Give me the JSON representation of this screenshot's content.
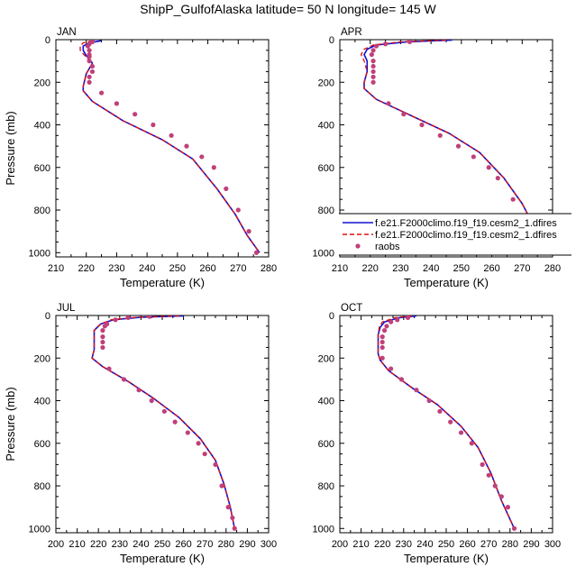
{
  "figure": {
    "title": "ShipP_GulfofAlaska  latitude= 50 N longitude= 145 W"
  },
  "legend": {
    "entries": [
      {
        "label": "f.e21.F2000climo.f19_f19.cesm2_1.dfires",
        "style": "solid",
        "color": "#1010d0"
      },
      {
        "label": "f.e21.F2000climo.f19_f19.cesm2_1.dfires",
        "style": "dashed",
        "color": "#e01010"
      },
      {
        "label": "raobs",
        "style": "marker",
        "color": "#c0407a"
      }
    ]
  },
  "chart_data": [
    {
      "type": "line",
      "panel": "JAN",
      "title": "JAN",
      "xlabel": "Temperature (K)",
      "ylabel": "Pressure (mb)",
      "xlim": [
        210,
        280
      ],
      "ylim": [
        1020,
        0
      ],
      "xticks": [
        210,
        220,
        230,
        240,
        250,
        260,
        270,
        280
      ],
      "yticks": [
        0,
        200,
        400,
        600,
        800,
        1000
      ],
      "series": [
        {
          "style": "solid",
          "color": "#1010d0",
          "x": [
            225,
            221,
            219,
            219,
            220,
            222,
            220,
            219,
            219,
            222,
            232,
            245,
            255,
            263,
            269,
            273,
            277
          ],
          "y": [
            5,
            15,
            30,
            50,
            75,
            110,
            160,
            220,
            240,
            290,
            380,
            470,
            560,
            700,
            820,
            920,
            1000
          ]
        },
        {
          "style": "dashed",
          "color": "#e01010",
          "x": [
            222,
            219,
            218,
            218,
            219.5,
            222,
            220,
            219,
            219,
            222,
            232,
            245,
            255,
            263,
            269,
            273,
            277
          ],
          "y": [
            5,
            15,
            30,
            50,
            75,
            110,
            160,
            220,
            240,
            290,
            380,
            470,
            560,
            700,
            820,
            920,
            1000
          ]
        },
        {
          "style": "marker",
          "color": "#c0407a",
          "x": [
            222,
            221,
            220.5,
            221,
            221,
            221,
            221,
            222,
            222,
            221,
            221,
            225,
            230,
            236,
            242,
            248,
            253,
            258,
            262,
            266,
            270,
            273.5,
            276
          ],
          "y": [
            10,
            20,
            30,
            50,
            70,
            80,
            100,
            125,
            150,
            175,
            200,
            250,
            300,
            350,
            400,
            450,
            500,
            550,
            600,
            700,
            800,
            900,
            1000
          ]
        }
      ]
    },
    {
      "type": "line",
      "panel": "APR",
      "title": "APR",
      "xlabel": "Temperature (K)",
      "ylabel": "",
      "xlim": [
        210,
        280
      ],
      "ylim": [
        1020,
        0
      ],
      "xticks": [
        210,
        220,
        230,
        240,
        250,
        260,
        270,
        280
      ],
      "yticks": [
        0,
        200,
        400,
        600,
        800,
        1000
      ],
      "series": [
        {
          "style": "solid",
          "color": "#1010d0",
          "x": [
            247,
            232,
            222,
            219,
            218,
            219,
            219,
            218,
            218,
            222,
            234,
            246,
            256,
            264,
            270,
            274,
            277
          ],
          "y": [
            2,
            10,
            25,
            45,
            70,
            100,
            150,
            200,
            230,
            280,
            360,
            440,
            530,
            650,
            770,
            880,
            1000
          ]
        },
        {
          "style": "dashed",
          "color": "#e01010",
          "x": [
            245,
            230,
            221,
            218,
            217,
            218,
            219,
            218,
            218,
            222,
            234,
            246,
            256,
            264,
            270,
            274,
            277
          ],
          "y": [
            2,
            10,
            25,
            45,
            70,
            100,
            150,
            200,
            230,
            280,
            360,
            440,
            530,
            650,
            770,
            880,
            1000
          ]
        },
        {
          "style": "marker",
          "color": "#c0407a",
          "x": [
            233,
            225,
            222,
            221,
            220.5,
            221,
            221,
            221,
            221,
            221,
            226,
            231,
            237,
            243,
            249,
            254,
            259,
            262,
            267,
            270,
            274,
            277
          ],
          "y": [
            10,
            20,
            30,
            50,
            70,
            100,
            125,
            150,
            175,
            200,
            300,
            350,
            400,
            450,
            500,
            550,
            600,
            650,
            750,
            850,
            950,
            1000
          ]
        }
      ]
    },
    {
      "type": "line",
      "panel": "JUL",
      "title": "JUL",
      "xlabel": "Temperature (K)",
      "ylabel": "Pressure (mb)",
      "xlim": [
        200,
        300
      ],
      "ylim": [
        1020,
        0
      ],
      "xticks": [
        200,
        210,
        220,
        230,
        240,
        250,
        260,
        270,
        280,
        290,
        300
      ],
      "yticks": [
        0,
        200,
        400,
        600,
        800,
        1000
      ],
      "series": [
        {
          "style": "solid",
          "color": "#1010d0",
          "x": [
            260,
            240,
            227,
            221,
            218,
            218,
            218,
            217,
            222,
            234,
            246,
            258,
            268,
            275,
            279,
            282,
            284
          ],
          "y": [
            2,
            8,
            20,
            40,
            70,
            110,
            160,
            200,
            240,
            310,
            390,
            480,
            580,
            680,
            790,
            900,
            1000
          ]
        },
        {
          "style": "dashed",
          "color": "#e01010",
          "x": [
            258,
            238,
            226,
            221,
            218,
            218,
            218,
            217,
            222,
            234,
            246,
            258,
            268,
            275,
            279,
            282,
            284
          ],
          "y": [
            2,
            8,
            20,
            40,
            70,
            110,
            160,
            200,
            240,
            310,
            390,
            480,
            580,
            680,
            790,
            900,
            1000
          ]
        },
        {
          "style": "marker",
          "color": "#c0407a",
          "x": [
            244,
            234,
            228,
            224,
            223,
            222,
            222,
            222,
            222,
            225,
            232,
            239,
            245,
            251,
            256,
            262,
            267,
            270,
            275,
            278,
            281,
            283,
            284
          ],
          "y": [
            5,
            10,
            20,
            40,
            50,
            70,
            100,
            125,
            150,
            250,
            300,
            350,
            400,
            450,
            500,
            550,
            600,
            650,
            700,
            800,
            900,
            950,
            1000
          ]
        }
      ]
    },
    {
      "type": "line",
      "panel": "OCT",
      "title": "OCT",
      "xlabel": "Temperature (K)",
      "ylabel": "",
      "xlim": [
        200,
        300
      ],
      "ylim": [
        1020,
        0
      ],
      "xticks": [
        200,
        210,
        220,
        230,
        240,
        250,
        260,
        270,
        280,
        290,
        300
      ],
      "yticks": [
        0,
        200,
        400,
        600,
        800,
        1000
      ],
      "series": [
        {
          "style": "solid",
          "color": "#1010d0",
          "x": [
            236,
            228,
            221,
            219,
            218,
            218,
            218,
            219,
            223,
            234,
            246,
            257,
            265,
            271,
            276,
            282
          ],
          "y": [
            2,
            10,
            30,
            55,
            90,
            130,
            180,
            210,
            260,
            340,
            420,
            520,
            620,
            740,
            870,
            1000
          ]
        },
        {
          "style": "dashed",
          "color": "#e01010",
          "x": [
            234,
            226,
            220,
            218.5,
            218,
            218,
            218,
            219,
            223,
            234,
            246,
            257,
            265,
            271,
            276,
            282
          ],
          "y": [
            2,
            10,
            30,
            55,
            90,
            130,
            180,
            210,
            260,
            340,
            420,
            520,
            620,
            740,
            870,
            1000
          ]
        },
        {
          "style": "marker",
          "color": "#c0407a",
          "x": [
            232,
            227,
            224,
            222,
            221,
            220,
            220,
            220,
            220,
            224,
            229,
            236,
            242,
            247,
            252,
            257,
            262,
            267,
            270,
            273,
            276,
            279,
            282
          ],
          "y": [
            10,
            20,
            30,
            50,
            70,
            100,
            125,
            150,
            200,
            250,
            300,
            350,
            400,
            450,
            500,
            550,
            600,
            700,
            750,
            800,
            850,
            900,
            1000
          ]
        }
      ]
    }
  ]
}
